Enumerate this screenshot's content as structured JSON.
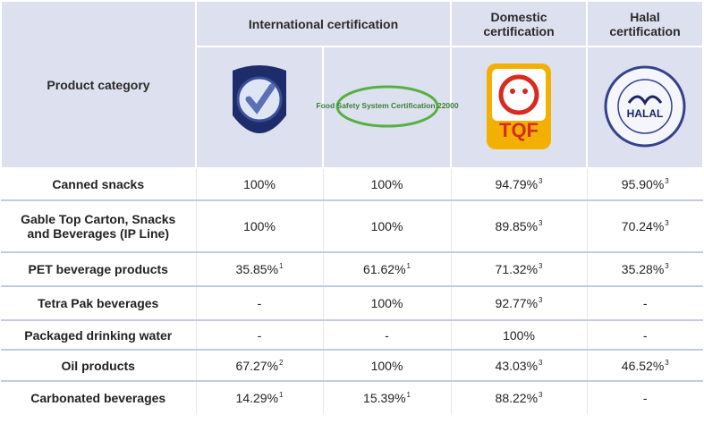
{
  "table": {
    "header": {
      "category": "Product category",
      "international": "International certification",
      "domestic": "Domestic certification",
      "halal": "Halal certification",
      "logos": {
        "fssc": "Food Safety System Certification 22000",
        "tqf": "TQF",
        "halal": "HALAL"
      }
    },
    "rows": [
      {
        "category": "Canned snacks",
        "cells": [
          "100%",
          "100%",
          {
            "text": "94.79%",
            "note": "3"
          },
          {
            "text": "95.90%",
            "note": "3"
          }
        ]
      },
      {
        "category": "Gable Top Carton, Snacks and Beverages (IP Line)",
        "cells": [
          "100%",
          "100%",
          {
            "text": "89.85%",
            "note": "3"
          },
          {
            "text": "70.24%",
            "note": "3"
          }
        ]
      },
      {
        "category": "PET beverage products",
        "cells": [
          {
            "text": "35.85%",
            "note": "1"
          },
          {
            "text": "61.62%",
            "note": "1"
          },
          {
            "text": "71.32%",
            "note": "3"
          },
          {
            "text": "35.28%",
            "note": "3"
          }
        ]
      },
      {
        "category": "Tetra Pak beverages",
        "cells": [
          "-",
          "100%",
          {
            "text": "92.77%",
            "note": "3"
          },
          "-"
        ]
      },
      {
        "category": "Packaged drinking water",
        "cells": [
          "-",
          "-",
          "100%",
          "-"
        ]
      },
      {
        "category": "Oil products",
        "cells": [
          {
            "text": "67.27%",
            "note": "2"
          },
          "100%",
          {
            "text": "43.03%",
            "note": "3"
          },
          {
            "text": "46.52%",
            "note": "3"
          }
        ]
      },
      {
        "category": "Carbonated beverages",
        "cells": [
          {
            "text": "14.29%",
            "note": "1"
          },
          {
            "text": "15.39%",
            "note": "1"
          },
          {
            "text": "88.22%",
            "note": "3"
          },
          "-"
        ]
      }
    ]
  }
}
